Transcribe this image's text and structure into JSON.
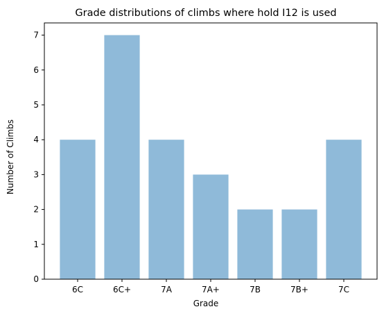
{
  "chart_data": {
    "type": "bar",
    "title": "Grade distributions of climbs where hold I12 is used",
    "xlabel": "Grade",
    "ylabel": "Number of Climbs",
    "categories": [
      "6C",
      "6C+",
      "7A",
      "7A+",
      "7B",
      "7B+",
      "7C"
    ],
    "values": [
      4,
      7,
      4,
      3,
      2,
      2,
      4
    ],
    "ylim": [
      0,
      7.35
    ],
    "yticks": [
      0,
      1,
      2,
      3,
      4,
      5,
      6,
      7
    ],
    "grid": false,
    "bar_color": "#8fbad9"
  }
}
